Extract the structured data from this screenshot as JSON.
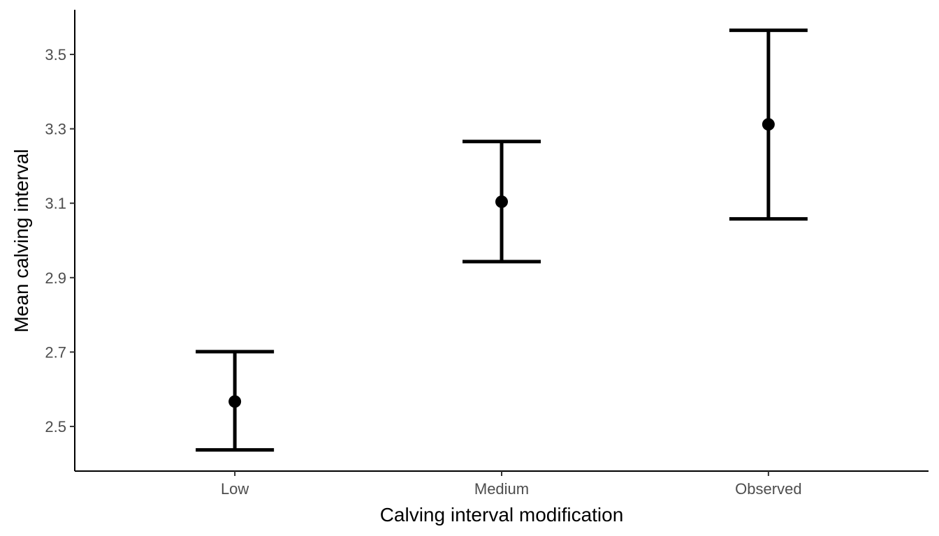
{
  "chart_data": {
    "type": "scatter",
    "title": "",
    "xlabel": "Calving interval modification",
    "ylabel": "Mean calving interval",
    "categories": [
      "Low",
      "Medium",
      "Observed"
    ],
    "series": [
      {
        "points": [
          {
            "category": "Low",
            "mean": 2.567,
            "lower": 2.437,
            "upper": 2.701
          },
          {
            "category": "Medium",
            "mean": 3.104,
            "lower": 2.943,
            "upper": 3.266
          },
          {
            "category": "Observed",
            "mean": 3.312,
            "lower": 3.058,
            "upper": 3.565
          }
        ]
      }
    ],
    "ylim": [
      2.38,
      3.62
    ],
    "yticks": [
      "2.5",
      "2.7",
      "2.9",
      "3.1",
      "3.3",
      "3.5"
    ],
    "grid": false,
    "legend": "none",
    "color": "#000000"
  }
}
